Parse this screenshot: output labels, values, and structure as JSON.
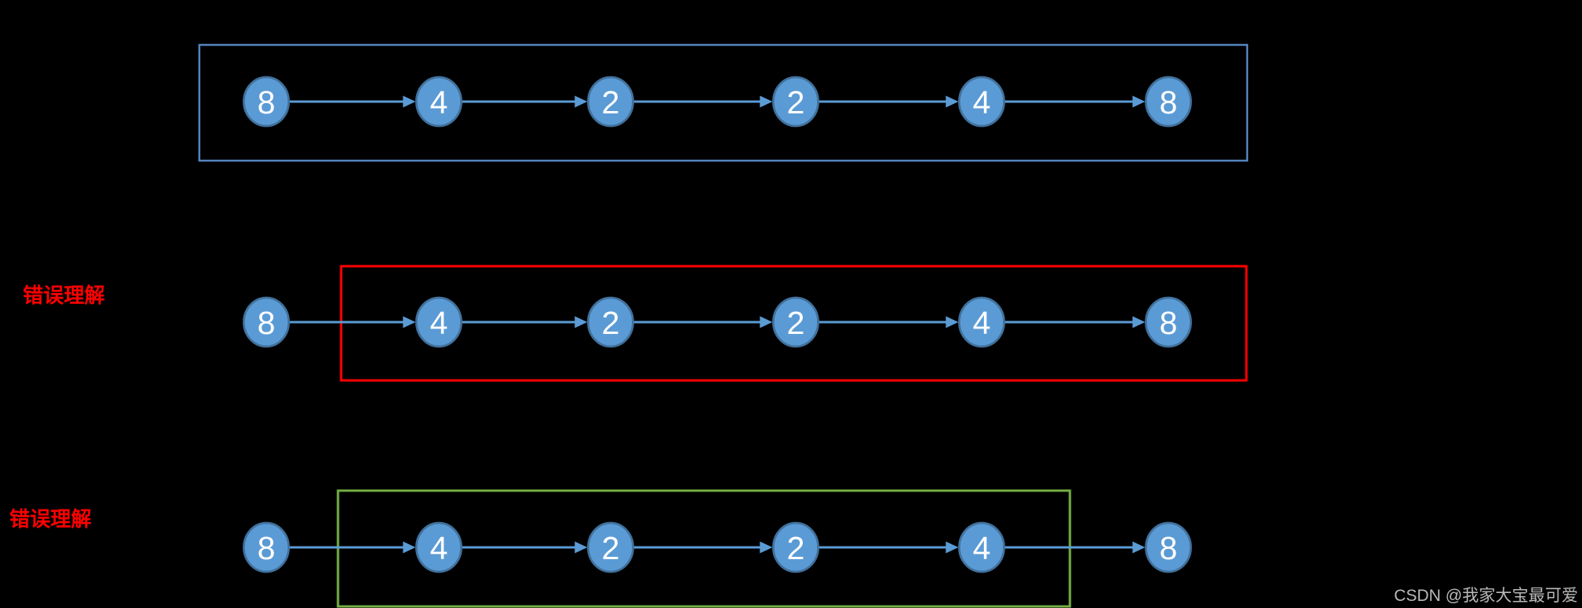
{
  "canvas": {
    "background": "#000000"
  },
  "colors": {
    "node_fill": "#5B9BD5",
    "node_stroke": "#41719C",
    "node_text": "#FFFFFF",
    "arrow": "#5B9BD5",
    "label_red": "#FF0000",
    "watermark_gray": "#B9B9B9",
    "box_blue": "#5585C0",
    "box_red": "#FF0000",
    "box_green": "#74AE44"
  },
  "rows": [
    {
      "label": "",
      "values": [
        "8",
        "4",
        "2",
        "2",
        "4",
        "8"
      ],
      "box": {
        "color": "#5585C0",
        "encloses_from_node": 0,
        "encloses_to_node": 5
      }
    },
    {
      "label": "错误理解",
      "values": [
        "8",
        "4",
        "2",
        "2",
        "4",
        "8"
      ],
      "box": {
        "color": "#FF0000",
        "encloses_from_node": 1,
        "encloses_to_node": 5
      }
    },
    {
      "label": "错误理解",
      "values": [
        "8",
        "4",
        "2",
        "2",
        "4",
        "8"
      ],
      "box": {
        "color": "#74AE44",
        "encloses_from_node": 1,
        "encloses_to_node": 4
      }
    }
  ],
  "watermark": {
    "text": "CSDN @我家大宝最可爱"
  }
}
